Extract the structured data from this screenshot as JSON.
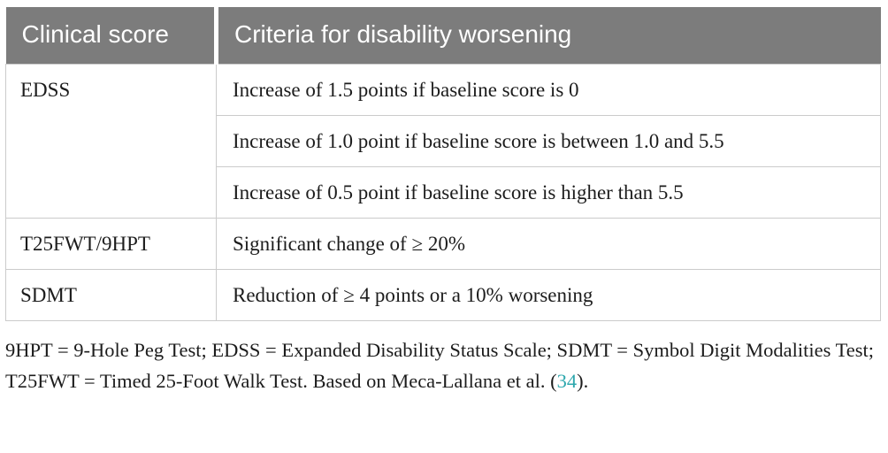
{
  "table": {
    "header": {
      "clinical_score": "Clinical score",
      "criteria": "Criteria for disability worsening"
    },
    "rows": [
      {
        "score": "EDSS",
        "criteria": [
          "Increase of 1.5 points if baseline score is 0",
          "Increase of 1.0 point if baseline score is between 1.0 and 5.5",
          "Increase of 0.5 point if baseline score is higher than 5.5"
        ]
      },
      {
        "score": "T25FWT/9HPT",
        "criteria": [
          "Significant change of ≥ 20%"
        ]
      },
      {
        "score": "SDMT",
        "criteria": [
          "Reduction of ≥ 4 points or a 10% worsening"
        ]
      }
    ]
  },
  "footnote": {
    "before_link": "9HPT = 9-Hole Peg Test; EDSS = Expanded Disability Status Scale; SDMT = Symbol Digit Modalities Test; T25FWT = Timed 25-Foot Walk Test. Based on Meca-Lallana et al. (",
    "link": "34",
    "after_link": ")."
  },
  "colors": {
    "header_background": "#7c7c7c",
    "header_text": "#ffffff",
    "body_text": "#1c1c1c",
    "border": "#cbcbcb",
    "citation_link": "#2fa8ae"
  }
}
